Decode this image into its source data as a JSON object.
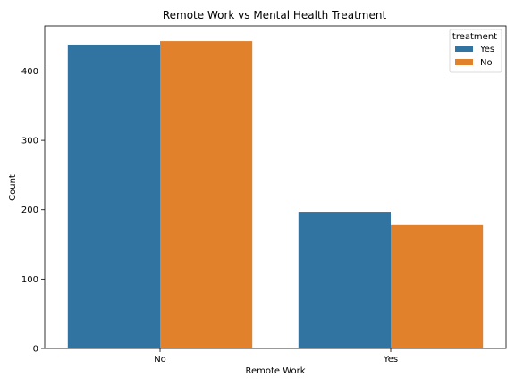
{
  "chart_data": {
    "type": "bar",
    "title": "Remote Work vs Mental Health Treatment",
    "xlabel": "Remote Work",
    "ylabel": "Count",
    "categories": [
      "No",
      "Yes"
    ],
    "series": [
      {
        "name": "Yes",
        "color": "#3274a1",
        "values": [
          438,
          197
        ]
      },
      {
        "name": "No",
        "color": "#e1812c",
        "values": [
          443,
          178
        ]
      }
    ],
    "ylim": [
      0,
      465
    ],
    "yticks": [
      0,
      100,
      200,
      300,
      400
    ],
    "grid": false,
    "legend": {
      "title": "treatment",
      "position": "top-right"
    }
  }
}
